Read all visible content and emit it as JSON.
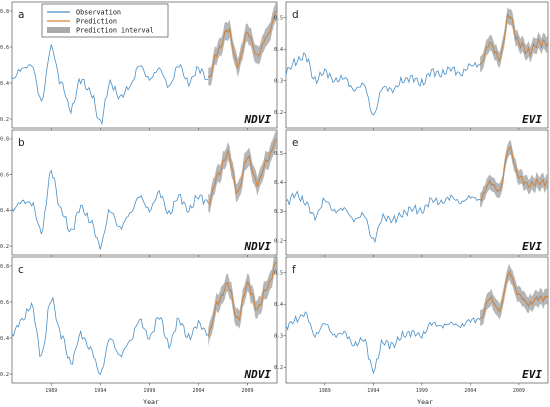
{
  "figure": {
    "xlabel_left": "Year",
    "xlabel_right": "Year"
  },
  "legend": {
    "observation": "Observation",
    "prediction": "Prediction",
    "interval": "Prediction interval"
  },
  "colors": {
    "observation": "#4a8fc6",
    "prediction": "#d4853c",
    "interval": "#a9a9a9",
    "axes": "#555555"
  },
  "chart_data": [
    {
      "type": "line",
      "panel_label": "a",
      "index_label": "NDVI",
      "ylim": [
        0.15,
        0.85
      ],
      "yticks": [
        0.2,
        0.4,
        0.6,
        0.8
      ],
      "ytick_labels": [
        "0.2",
        "0.4",
        "0.6",
        "0.8"
      ],
      "xlim": [
        1985,
        2012
      ],
      "xticks": [
        1989,
        1994,
        1999,
        2004,
        2009
      ],
      "xtick_labels": [],
      "observation": {
        "x": [
          1985,
          1986,
          1987,
          1988,
          1989,
          1990,
          1991,
          1992,
          1993,
          1994,
          1995,
          1996,
          1997,
          1998,
          1999,
          2000,
          2001,
          2002,
          2003,
          2004,
          2005
        ],
        "y": [
          0.42,
          0.48,
          0.5,
          0.3,
          0.6,
          0.4,
          0.25,
          0.42,
          0.35,
          0.18,
          0.4,
          0.32,
          0.38,
          0.5,
          0.42,
          0.48,
          0.38,
          0.5,
          0.4,
          0.48,
          0.42
        ]
      },
      "prediction": {
        "x": [
          2005,
          2006,
          2007,
          2008,
          2009,
          2010,
          2011,
          2012
        ],
        "y": [
          0.42,
          0.58,
          0.7,
          0.5,
          0.68,
          0.55,
          0.66,
          0.8
        ]
      },
      "interval_halfwidth": 0.05
    },
    {
      "type": "line",
      "panel_label": "b",
      "index_label": "NDVI",
      "ylim": [
        0.15,
        0.85
      ],
      "yticks": [
        0.2,
        0.4,
        0.6,
        0.8
      ],
      "ytick_labels": [
        "0.2",
        "0.4",
        "0.6",
        "0.8"
      ],
      "xlim": [
        1985,
        2012
      ],
      "xticks": [
        1989,
        1994,
        1999,
        2004,
        2009
      ],
      "xtick_labels": [],
      "observation": {
        "x": [
          1985,
          1986,
          1987,
          1988,
          1989,
          1990,
          1991,
          1992,
          1993,
          1994,
          1995,
          1996,
          1997,
          1998,
          1999,
          2000,
          2001,
          2002,
          2003,
          2004,
          2005
        ],
        "y": [
          0.4,
          0.45,
          0.44,
          0.28,
          0.62,
          0.4,
          0.28,
          0.42,
          0.34,
          0.2,
          0.4,
          0.3,
          0.38,
          0.48,
          0.4,
          0.5,
          0.38,
          0.48,
          0.4,
          0.48,
          0.44
        ]
      },
      "prediction": {
        "x": [
          2005,
          2006,
          2007,
          2008,
          2009,
          2010,
          2011,
          2012
        ],
        "y": [
          0.44,
          0.6,
          0.72,
          0.5,
          0.7,
          0.55,
          0.68,
          0.8
        ]
      },
      "interval_halfwidth": 0.05
    },
    {
      "type": "line",
      "panel_label": "c",
      "index_label": "NDVI",
      "ylim": [
        0.15,
        0.85
      ],
      "yticks": [
        0.2,
        0.4,
        0.6,
        0.8
      ],
      "ytick_labels": [
        "0.2",
        "0.4",
        "0.6",
        "0.8"
      ],
      "xlim": [
        1985,
        2012
      ],
      "xticks": [
        1989,
        1994,
        1999,
        2004,
        2009
      ],
      "xtick_labels": [
        "1989",
        "1994",
        "1999",
        "2004",
        "2009"
      ],
      "observation": {
        "x": [
          1985,
          1986,
          1987,
          1988,
          1989,
          1990,
          1991,
          1992,
          1993,
          1994,
          1995,
          1996,
          1997,
          1998,
          1999,
          2000,
          2001,
          2002,
          2003,
          2004,
          2005
        ],
        "y": [
          0.42,
          0.5,
          0.58,
          0.3,
          0.62,
          0.42,
          0.26,
          0.42,
          0.34,
          0.2,
          0.4,
          0.3,
          0.38,
          0.5,
          0.4,
          0.52,
          0.36,
          0.5,
          0.4,
          0.48,
          0.42
        ]
      },
      "prediction": {
        "x": [
          2005,
          2006,
          2007,
          2008,
          2009,
          2010,
          2011,
          2012
        ],
        "y": [
          0.42,
          0.6,
          0.7,
          0.5,
          0.7,
          0.56,
          0.68,
          0.82
        ]
      },
      "interval_halfwidth": 0.05
    },
    {
      "type": "line",
      "panel_label": "d",
      "index_label": "EVI",
      "ylim": [
        0.15,
        0.55
      ],
      "yticks": [
        0.2,
        0.3,
        0.4,
        0.5
      ],
      "ytick_labels": [
        "0.2",
        "0.3",
        "0.4",
        "0.5"
      ],
      "xlim": [
        1985,
        2012
      ],
      "xticks": [
        1989,
        1994,
        1999,
        2004,
        2009
      ],
      "xtick_labels": [],
      "observation": {
        "x": [
          1985,
          1986,
          1987,
          1988,
          1989,
          1990,
          1991,
          1992,
          1993,
          1994,
          1995,
          1996,
          1997,
          1998,
          1999,
          2000,
          2001,
          2002,
          2003,
          2004,
          2005
        ],
        "y": [
          0.33,
          0.36,
          0.38,
          0.3,
          0.33,
          0.3,
          0.31,
          0.27,
          0.29,
          0.19,
          0.28,
          0.27,
          0.3,
          0.31,
          0.29,
          0.33,
          0.32,
          0.34,
          0.32,
          0.35,
          0.35
        ]
      },
      "prediction": {
        "x": [
          2005,
          2006,
          2007,
          2008,
          2009,
          2010,
          2011,
          2012
        ],
        "y": [
          0.35,
          0.42,
          0.37,
          0.51,
          0.42,
          0.39,
          0.42,
          0.42
        ]
      },
      "interval_halfwidth": 0.025
    },
    {
      "type": "line",
      "panel_label": "e",
      "index_label": "EVI",
      "ylim": [
        0.15,
        0.58
      ],
      "yticks": [
        0.2,
        0.3,
        0.4,
        0.5
      ],
      "ytick_labels": [
        "0.2",
        "0.3",
        "0.4",
        "0.5"
      ],
      "xlim": [
        1985,
        2012
      ],
      "xticks": [
        1989,
        1994,
        1999,
        2004,
        2009
      ],
      "xtick_labels": [],
      "observation": {
        "x": [
          1985,
          1986,
          1987,
          1988,
          1989,
          1990,
          1991,
          1992,
          1993,
          1994,
          1995,
          1996,
          1997,
          1998,
          1999,
          2000,
          2001,
          2002,
          2003,
          2004,
          2005
        ],
        "y": [
          0.33,
          0.36,
          0.33,
          0.28,
          0.34,
          0.3,
          0.31,
          0.27,
          0.29,
          0.2,
          0.28,
          0.27,
          0.29,
          0.31,
          0.3,
          0.34,
          0.33,
          0.35,
          0.33,
          0.35,
          0.34
        ]
      },
      "prediction": {
        "x": [
          2005,
          2006,
          2007,
          2008,
          2009,
          2010,
          2011,
          2012
        ],
        "y": [
          0.34,
          0.4,
          0.37,
          0.52,
          0.42,
          0.39,
          0.4,
          0.4
        ]
      },
      "interval_halfwidth": 0.025
    },
    {
      "type": "line",
      "panel_label": "f",
      "index_label": "EVI",
      "ylim": [
        0.15,
        0.55
      ],
      "yticks": [
        0.2,
        0.3,
        0.4,
        0.5
      ],
      "ytick_labels": [
        "0.2",
        "0.3",
        "0.4",
        "0.5"
      ],
      "xlim": [
        1985,
        2012
      ],
      "xticks": [
        1989,
        1994,
        1999,
        2004,
        2009
      ],
      "xtick_labels": [
        "1989",
        "1994",
        "1999",
        "2004",
        "2009"
      ],
      "observation": {
        "x": [
          1985,
          1986,
          1987,
          1988,
          1989,
          1990,
          1991,
          1992,
          1993,
          1994,
          1995,
          1996,
          1997,
          1998,
          1999,
          2000,
          2001,
          2002,
          2003,
          2004,
          2005
        ],
        "y": [
          0.33,
          0.35,
          0.37,
          0.3,
          0.34,
          0.3,
          0.31,
          0.27,
          0.29,
          0.19,
          0.28,
          0.27,
          0.3,
          0.31,
          0.3,
          0.34,
          0.33,
          0.34,
          0.33,
          0.35,
          0.35
        ]
      },
      "prediction": {
        "x": [
          2005,
          2006,
          2007,
          2008,
          2009,
          2010,
          2011,
          2012
        ],
        "y": [
          0.35,
          0.42,
          0.38,
          0.5,
          0.43,
          0.4,
          0.42,
          0.42
        ]
      },
      "interval_halfwidth": 0.025
    }
  ]
}
